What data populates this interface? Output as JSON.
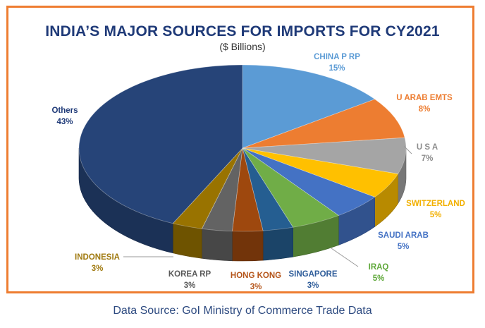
{
  "chart_data": {
    "type": "pie",
    "title": "INDIA’S MAJOR SOURCES FOR IMPORTS FOR CY2021",
    "subtitle": "($ Billions)",
    "slices": [
      {
        "label": "CHINA P RP",
        "value_label": "15%",
        "value": 15,
        "color": "#5b9bd5",
        "text_color": "#5b9bd5"
      },
      {
        "label": "U ARAB EMTS",
        "value_label": "8%",
        "value": 8,
        "color": "#ed7d31",
        "text_color": "#ed7d31"
      },
      {
        "label": "U S A",
        "value_label": "7%",
        "value": 7,
        "color": "#a5a5a5",
        "text_color": "#8c8c8c"
      },
      {
        "label": "SWITZERLAND",
        "value_label": "5%",
        "value": 5,
        "color": "#ffc000",
        "text_color": "#f2b000"
      },
      {
        "label": "SAUDI ARAB",
        "value_label": "5%",
        "value": 5,
        "color": "#4472c4",
        "text_color": "#4472c4"
      },
      {
        "label": "IRAQ",
        "value_label": "5%",
        "value": 5,
        "color": "#70ad47",
        "text_color": "#5fa83a"
      },
      {
        "label": "SINGAPORE",
        "value_label": "3%",
        "value": 3,
        "color": "#255e91",
        "text_color": "#2f5d9a"
      },
      {
        "label": "HONG KONG",
        "value_label": "3%",
        "value": 3,
        "color": "#9e480e",
        "text_color": "#b5551a"
      },
      {
        "label": "KOREA RP",
        "value_label": "3%",
        "value": 3,
        "color": "#636363",
        "text_color": "#595959"
      },
      {
        "label": "INDONESIA",
        "value_label": "3%",
        "value": 3,
        "color": "#997300",
        "text_color": "#a07a10"
      },
      {
        "label": "Others",
        "value_label": "43%",
        "value": 43,
        "color": "#264478",
        "text_color": "#1f3a78"
      }
    ]
  },
  "footer": {
    "source": "Data Source: GoI Ministry of Commerce Trade Data"
  }
}
